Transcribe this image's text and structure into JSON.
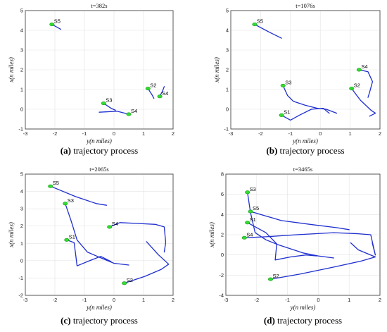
{
  "xlabel": "y(n miles)",
  "ylabel": "x(n miles)",
  "chart_data": [
    {
      "type": "line",
      "title": "t=382s",
      "caption_letter": "(a)",
      "caption_text": " trajectory process",
      "xlim": [
        -3,
        2
      ],
      "ylim": [
        -1,
        5
      ],
      "xticks": [
        -3,
        -2,
        -1,
        0,
        1,
        2
      ],
      "yticks": [
        -1,
        0,
        1,
        2,
        3,
        4,
        5
      ],
      "grid": true,
      "series": [
        {
          "label": "S5",
          "points": [
            [
              -2.1,
              4.3
            ],
            [
              -1.8,
              4.05
            ]
          ]
        },
        {
          "label": "S4",
          "points": [
            [
              0.5,
              -0.25
            ],
            [
              0.1,
              -0.1
            ],
            [
              -0.5,
              -0.15
            ]
          ]
        },
        {
          "label": "S3",
          "points": [
            [
              -0.35,
              0.3
            ],
            [
              -0.1,
              0.05
            ],
            [
              0.05,
              -0.05
            ]
          ]
        },
        {
          "label": "S2",
          "points": [
            [
              1.15,
              1.05
            ],
            [
              1.3,
              0.7
            ],
            [
              1.35,
              0.55
            ]
          ]
        },
        {
          "label": "S4",
          "points": [
            [
              1.55,
              0.65
            ],
            [
              1.65,
              0.95
            ],
            [
              1.7,
              1.15
            ]
          ]
        }
      ]
    },
    {
      "type": "line",
      "title": "t=1076s",
      "caption_letter": "(b)",
      "caption_text": " trajectory process",
      "xlim": [
        -3,
        2
      ],
      "ylim": [
        -1,
        5
      ],
      "xticks": [
        -3,
        -2,
        -1,
        0,
        1,
        2
      ],
      "yticks": [
        -1,
        0,
        1,
        2,
        3,
        4,
        5
      ],
      "grid": true,
      "series": [
        {
          "label": "S5",
          "points": [
            [
              -2.2,
              4.3
            ],
            [
              -1.7,
              3.9
            ],
            [
              -1.3,
              3.6
            ]
          ]
        },
        {
          "label": "S3",
          "points": [
            [
              -1.25,
              1.2
            ],
            [
              -1.1,
              0.7
            ],
            [
              -0.9,
              0.4
            ],
            [
              -0.5,
              0.2
            ],
            [
              -0.1,
              0.05
            ],
            [
              0.2,
              0.0
            ],
            [
              0.55,
              -0.2
            ]
          ]
        },
        {
          "label": "S1",
          "points": [
            [
              -1.3,
              -0.3
            ],
            [
              -1.0,
              -0.55
            ],
            [
              -0.7,
              -0.3
            ],
            [
              -0.3,
              0.0
            ],
            [
              0.1,
              0.05
            ],
            [
              0.3,
              -0.2
            ]
          ]
        },
        {
          "label": "S4",
          "points": [
            [
              1.3,
              2.0
            ],
            [
              1.6,
              1.9
            ],
            [
              1.75,
              1.4
            ],
            [
              1.65,
              0.85
            ],
            [
              1.6,
              0.6
            ]
          ]
        },
        {
          "label": "S2",
          "points": [
            [
              1.05,
              1.05
            ],
            [
              1.35,
              0.45
            ],
            [
              1.7,
              -0.05
            ],
            [
              1.85,
              -0.2
            ],
            [
              1.65,
              -0.35
            ]
          ]
        }
      ]
    },
    {
      "type": "line",
      "title": "t=2065s",
      "caption_letter": "(c)",
      "caption_text": " trajectory process",
      "xlim": [
        -3,
        2
      ],
      "ylim": [
        -2,
        5
      ],
      "xticks": [
        -3,
        -2,
        -1,
        0,
        1,
        2
      ],
      "yticks": [
        -2,
        -1,
        0,
        1,
        2,
        3,
        4,
        5
      ],
      "grid": true,
      "series": [
        {
          "label": "S5",
          "points": [
            [
              -2.15,
              4.3
            ],
            [
              -1.3,
              3.7
            ],
            [
              -0.6,
              3.3
            ],
            [
              -0.25,
              3.2
            ]
          ]
        },
        {
          "label": "S3",
          "points": [
            [
              -1.65,
              3.3
            ],
            [
              -1.45,
              2.3
            ],
            [
              -1.25,
              1.2
            ],
            [
              -0.9,
              0.5
            ],
            [
              -0.5,
              0.2
            ],
            [
              0.0,
              -0.15
            ],
            [
              0.5,
              -0.25
            ]
          ]
        },
        {
          "label": "S1",
          "points": [
            [
              -1.6,
              1.2
            ],
            [
              -1.35,
              1.05
            ],
            [
              -1.3,
              0.4
            ],
            [
              -1.25,
              -0.3
            ],
            [
              -0.9,
              -0.05
            ],
            [
              -0.45,
              0.25
            ],
            [
              -0.1,
              -0.05
            ]
          ]
        },
        {
          "label": "S4",
          "points": [
            [
              -0.15,
              1.95
            ],
            [
              0.2,
              2.2
            ],
            [
              0.8,
              2.15
            ],
            [
              1.4,
              2.1
            ],
            [
              1.7,
              1.95
            ],
            [
              1.75,
              1.05
            ],
            [
              1.7,
              0.5
            ]
          ]
        },
        {
          "label": "S2",
          "points": [
            [
              0.35,
              -1.3
            ],
            [
              1.05,
              -0.9
            ],
            [
              1.6,
              -0.5
            ],
            [
              1.85,
              -0.2
            ],
            [
              1.5,
              0.35
            ],
            [
              1.1,
              1.1
            ]
          ]
        }
      ]
    },
    {
      "type": "line",
      "title": "t=3465s",
      "caption_letter": "(d)",
      "caption_text": " trajectory process",
      "xlim": [
        -3,
        2
      ],
      "ylim": [
        -4,
        8
      ],
      "xticks": [
        -3,
        -2,
        -1,
        0,
        1,
        2
      ],
      "yticks": [
        -4,
        -2,
        0,
        2,
        4,
        6,
        8
      ],
      "grid": true,
      "series": [
        {
          "label": "S3",
          "points": [
            [
              -2.3,
              6.2
            ],
            [
              -2.2,
              4.2
            ],
            [
              -2.05,
              2.2
            ],
            [
              -1.7,
              1.5
            ],
            [
              -1.3,
              1.0
            ],
            [
              -0.5,
              0.2
            ],
            [
              0.0,
              -0.1
            ],
            [
              0.5,
              -0.3
            ]
          ]
        },
        {
          "label": "S1",
          "points": [
            [
              -2.3,
              3.2
            ],
            [
              -1.7,
              2.2
            ],
            [
              -1.35,
              1.1
            ],
            [
              -1.4,
              -0.5
            ],
            [
              -0.9,
              -0.2
            ],
            [
              -0.4,
              0.0
            ],
            [
              -0.05,
              -0.1
            ]
          ]
        },
        {
          "label": "S5",
          "points": [
            [
              -2.2,
              4.3
            ],
            [
              -1.2,
              3.4
            ],
            [
              -0.2,
              3.0
            ],
            [
              0.6,
              2.7
            ],
            [
              1.0,
              2.5
            ]
          ]
        },
        {
          "label": "S4",
          "points": [
            [
              -2.4,
              1.7
            ],
            [
              -1.7,
              1.8
            ],
            [
              -0.7,
              2.0
            ],
            [
              0.5,
              2.2
            ],
            [
              1.3,
              2.1
            ],
            [
              1.7,
              2.0
            ],
            [
              1.85,
              0.0
            ],
            [
              1.75,
              1.2
            ]
          ]
        },
        {
          "label": "S2",
          "points": [
            [
              -1.55,
              -2.4
            ],
            [
              -0.6,
              -1.9
            ],
            [
              0.5,
              -1.2
            ],
            [
              1.4,
              -0.6
            ],
            [
              1.85,
              -0.2
            ],
            [
              1.3,
              0.5
            ],
            [
              1.05,
              1.2
            ]
          ]
        }
      ]
    }
  ]
}
